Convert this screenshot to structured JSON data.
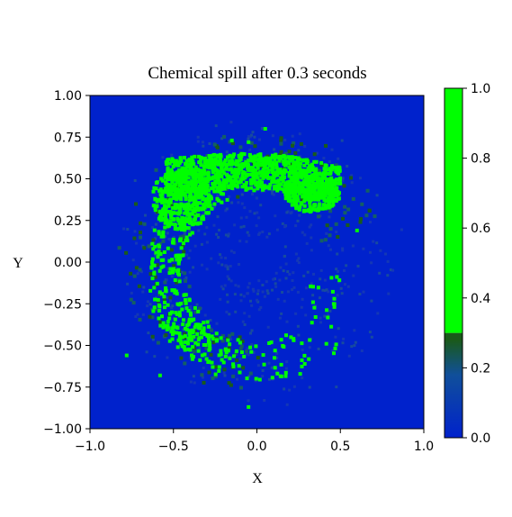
{
  "chart_data": {
    "type": "heatmap",
    "title": "Chemical spill after 0.3 seconds",
    "xlabel": "X",
    "ylabel": "Y",
    "xlim": [
      -1.0,
      1.0
    ],
    "ylim": [
      -1.0,
      1.0
    ],
    "x_ticks": [
      "−1.0",
      "−0.5",
      "0.0",
      "0.5",
      "1.0"
    ],
    "y_ticks": [
      "1.00",
      "0.75",
      "0.50",
      "0.25",
      "0.00",
      "−0.25",
      "−0.50",
      "−0.75",
      "−1.00"
    ],
    "colorbar": {
      "range": [
        0.0,
        1.0
      ],
      "ticks": [
        "0.0",
        "0.2",
        "0.4",
        "0.6",
        "0.8",
        "1.0"
      ],
      "low_color": "#0022cc",
      "high_color": "#00ff00",
      "threshold": 0.3
    },
    "background_value": 0.0,
    "plume": {
      "description_values": "high-concentration crescent",
      "arc_center": [
        0.0,
        0.0
      ],
      "arc_radius": 0.55,
      "arc_start_deg": 20,
      "arc_end_deg": 250,
      "dense_head_center": [
        0.3,
        0.45
      ],
      "value": 1.0
    },
    "grid": false,
    "colors": {
      "field_low": "#0022cc",
      "field_mid": "#1a5a1a",
      "field_high": "#00ff00"
    }
  }
}
